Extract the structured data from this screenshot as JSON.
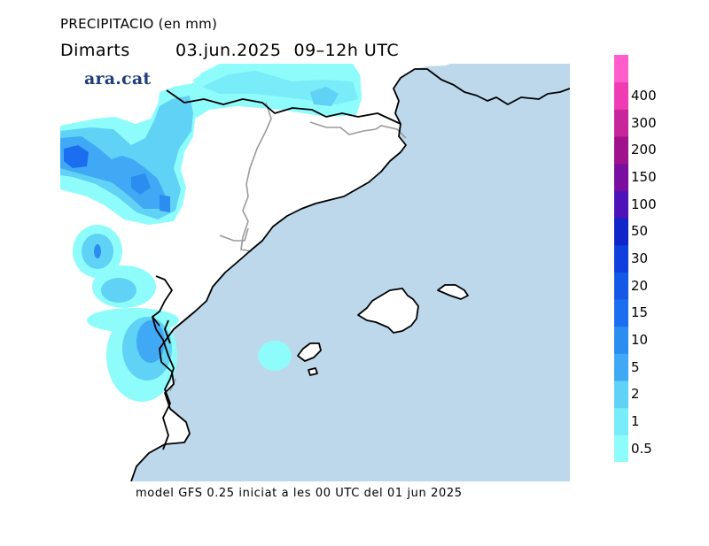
{
  "header": {
    "title": "PRECIPITACIO (en mm)",
    "day": "Dimarts",
    "date": "03.jun.2025",
    "time": "09–12h UTC"
  },
  "brand": {
    "name": "ara.cat"
  },
  "footer": {
    "model_text": "model GFS 0.25 iniciat a les 00 UTC del 01 jun 2025"
  },
  "legend": {
    "levels": [
      {
        "label": "0.5",
        "color": "#8ffcfc"
      },
      {
        "label": "1",
        "color": "#78ecf8"
      },
      {
        "label": "2",
        "color": "#5fd2f5"
      },
      {
        "label": "5",
        "color": "#3fa9f5"
      },
      {
        "label": "10",
        "color": "#2b8df0"
      },
      {
        "label": "15",
        "color": "#1c6ef0"
      },
      {
        "label": "20",
        "color": "#1458e8"
      },
      {
        "label": "30",
        "color": "#0f3fdc"
      },
      {
        "label": "50",
        "color": "#1026c8"
      },
      {
        "label": "100",
        "color": "#4d12b8"
      },
      {
        "label": "150",
        "color": "#7a0ea0"
      },
      {
        "label": "200",
        "color": "#a0128c"
      },
      {
        "label": "300",
        "color": "#c8249c"
      },
      {
        "label": "400",
        "color": "#f03cb4"
      },
      {
        "label": "",
        "color": "#ff5ccc"
      }
    ]
  },
  "map_colors": {
    "sea": "#bcd8ea",
    "land": "#ffffff",
    "coast": "#000000",
    "border": "#9a9a9a"
  }
}
